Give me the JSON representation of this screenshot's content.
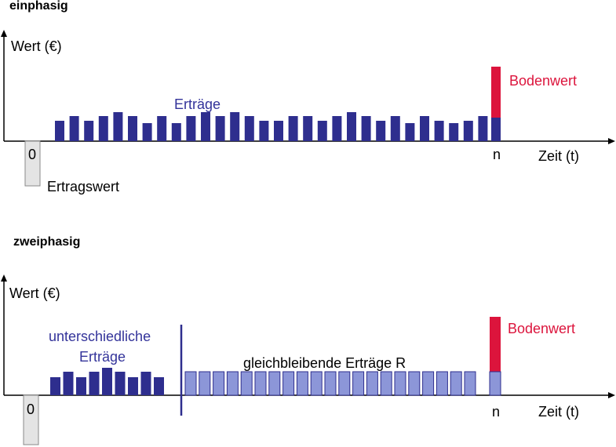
{
  "colors": {
    "dark_bar": "#2e2e8e",
    "light_bar": "#8c96d8",
    "light_bar_stroke": "#2e2e8e",
    "red": "#dc143c",
    "label_blue": "#33339a",
    "neg_fill": "#e4e4e4",
    "neg_stroke": "#8a8a8a",
    "axis": "#000000"
  },
  "panel1": {
    "title": "einphasig",
    "y_axis_label": "Wert (€)",
    "x_axis_label": "Zeit (t)",
    "origin_label": "0",
    "end_label": "n",
    "series_label": "Erträge",
    "land_value_label": "Bodenwert",
    "neg_bar_label": "Ertragswert",
    "yields": [
      26,
      32,
      26,
      32,
      37,
      32,
      23,
      32,
      23,
      32,
      37,
      32,
      37,
      32,
      26,
      26,
      32,
      32,
      26,
      32,
      37,
      32,
      26,
      32,
      23,
      32,
      26,
      23,
      26,
      32
    ],
    "land_value": 65
  },
  "panel2": {
    "title": "zweiphasig",
    "y_axis_label": "Wert (€)",
    "x_axis_label": "Zeit (t)",
    "origin_label": "0",
    "end_label": "n",
    "phase1_label_line1": "unterschiedliche",
    "phase1_label_line2": "Erträge",
    "phase2_label": "gleichbleibende Erträge R",
    "land_value_label": "Bodenwert",
    "phase1_yields": [
      23,
      30,
      23,
      30,
      35,
      30,
      23,
      30,
      23
    ],
    "phase2_yield": 30,
    "phase2_count": 21,
    "land_value": 70
  }
}
